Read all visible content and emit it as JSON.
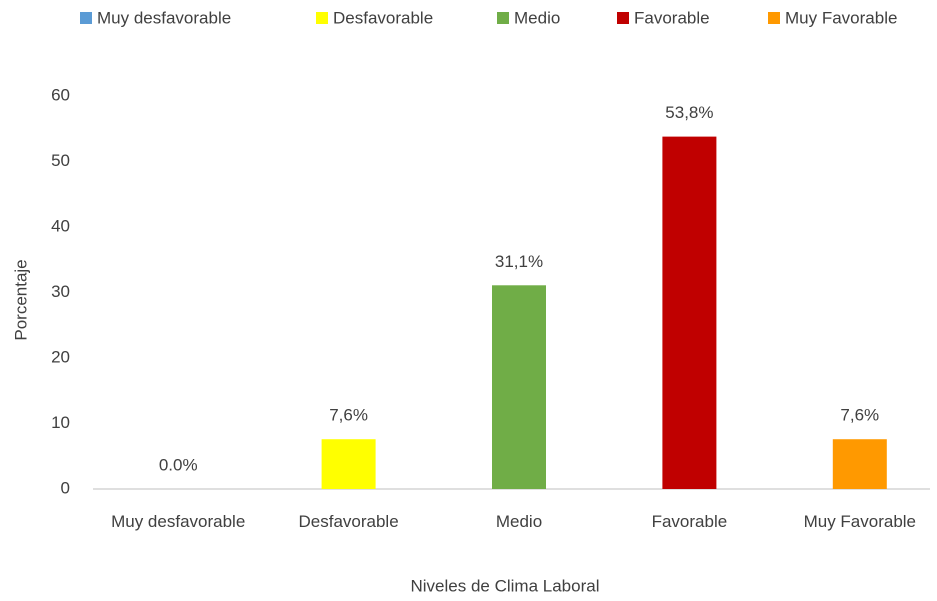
{
  "chart_data": {
    "type": "bar",
    "categories": [
      "Muy desfavorable",
      "Desfavorable",
      "Medio",
      "Favorable",
      "Muy Favorable"
    ],
    "values": [
      0,
      7.6,
      31.1,
      53.8,
      7.6
    ],
    "value_labels": [
      "0.0%",
      "7,6%",
      "31,1%",
      "53,8%",
      "7,6%"
    ],
    "colors": [
      "#5b9bd5",
      "#ffff00",
      "#70ad47",
      "#c00000",
      "#ff9900"
    ],
    "x_label": "Niveles de Clima Laboral",
    "y_label": "Porcentaje",
    "ylim": [
      0,
      60
    ],
    "yticks": [
      0,
      10,
      20,
      30,
      40,
      50,
      60
    ],
    "grid": false,
    "legend": "top"
  }
}
